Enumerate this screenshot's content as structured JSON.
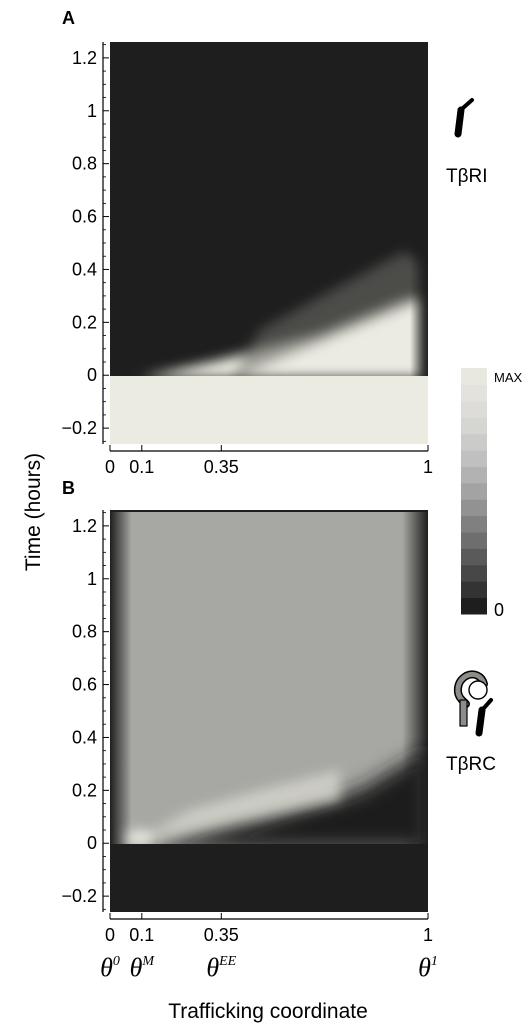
{
  "chart_data": [
    {
      "panel": "A",
      "type": "heatmap",
      "species": "TβRI",
      "xlabel": "",
      "ylabel": "Time (hours)",
      "xlim": [
        0,
        1
      ],
      "ylim": [
        -0.26,
        1.26
      ],
      "x_ticks": [
        0,
        0.1,
        0.35,
        1
      ],
      "x_tick_labels": [
        "0",
        "0.1",
        "0.35",
        "1"
      ],
      "y_ticks": [
        -0.2,
        0,
        0.2,
        0.4,
        0.6,
        0.8,
        1,
        1.2
      ],
      "y_tick_labels": [
        "−0.2",
        "0",
        "0.2",
        "0.4",
        "0.6",
        "0.8",
        "1",
        "1.2"
      ],
      "description_points": [
        {
          "x": 0.1,
          "front_time": 0.0
        },
        {
          "x": 0.35,
          "front_time": 0.08
        },
        {
          "x": 0.6,
          "front_time": 0.16
        },
        {
          "x": 0.95,
          "front_time": 0.3
        }
      ]
    },
    {
      "panel": "B",
      "type": "heatmap",
      "species": "TβRC",
      "xlabel": "Trafficking coordinate",
      "ylabel": "Time (hours)",
      "xlim": [
        0,
        1
      ],
      "ylim": [
        -0.26,
        1.26
      ],
      "x_ticks": [
        0,
        0.1,
        0.35,
        1
      ],
      "x_tick_labels": [
        "0",
        "0.1",
        "0.35",
        "1"
      ],
      "y_ticks": [
        -0.2,
        0,
        0.2,
        0.4,
        0.6,
        0.8,
        1,
        1.2
      ],
      "y_tick_labels": [
        "−0.2",
        "0",
        "0.2",
        "0.4",
        "0.6",
        "0.8",
        "1",
        "1.2"
      ],
      "compartment_labels": [
        {
          "x": 0,
          "base": "θ",
          "sup": "0"
        },
        {
          "x": 0.1,
          "base": "θ",
          "sup": "M"
        },
        {
          "x": 0.35,
          "base": "θ",
          "sup": "EE"
        },
        {
          "x": 1,
          "base": "θ",
          "sup": "1"
        }
      ]
    }
  ],
  "colorbar": {
    "max_label": "MAX",
    "min_label": "0",
    "steps": 15,
    "colors": [
      "#1e1e1e",
      "#333333",
      "#474747",
      "#5a5a5a",
      "#6e6e6e",
      "#808080",
      "#929292",
      "#a3a3a3",
      "#b2b2b2",
      "#c0c0c0",
      "#cbcbca",
      "#d5d5d2",
      "#dddcd8",
      "#e3e2dd",
      "#e9e8e0"
    ]
  },
  "colors": {
    "dark": "#1e1e1e",
    "light": "#ebebe2",
    "mid_gray": "#a7a7a3"
  }
}
